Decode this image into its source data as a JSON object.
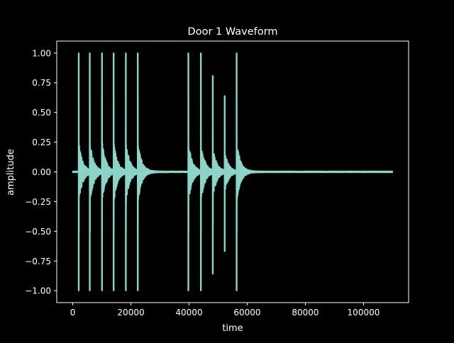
{
  "chart_data": {
    "type": "line",
    "title": "Door 1 Waveform",
    "xlabel": "time",
    "ylabel": "amplitude",
    "xlim": [
      -5500,
      115500
    ],
    "ylim": [
      -1.1,
      1.1
    ],
    "x_ticks": [
      0,
      20000,
      40000,
      60000,
      80000,
      100000
    ],
    "x_tick_labels": [
      "0",
      "20000",
      "40000",
      "60000",
      "80000",
      "100000"
    ],
    "y_ticks": [
      -1.0,
      -0.75,
      -0.5,
      -0.25,
      0.0,
      0.25,
      0.5,
      0.75,
      1.0
    ],
    "y_tick_labels": [
      "−1.00",
      "−0.75",
      "−0.50",
      "−0.25",
      "0.00",
      "0.25",
      "0.50",
      "0.75",
      "1.00"
    ],
    "grid": false,
    "series": [
      {
        "color": "#8dd3c7",
        "x_range": [
          0,
          110000
        ],
        "events": [
          {
            "x": 2000,
            "peak": 1.0,
            "trough": -1.0
          },
          {
            "x": 5800,
            "peak": 1.0,
            "trough": -1.0
          },
          {
            "x": 10000,
            "peak": 1.0,
            "trough": -1.0
          },
          {
            "x": 14000,
            "peak": 1.0,
            "trough": -1.0
          },
          {
            "x": 18200,
            "peak": 1.0,
            "trough": -1.0
          },
          {
            "x": 22300,
            "peak": 1.0,
            "trough": -1.0
          },
          {
            "x": 39700,
            "peak": 1.0,
            "trough": -1.0
          },
          {
            "x": 44000,
            "peak": 1.0,
            "trough": -1.0
          },
          {
            "x": 48100,
            "peak": 0.81,
            "trough": -0.86
          },
          {
            "x": 52200,
            "peak": 0.64,
            "trough": -0.67
          },
          {
            "x": 56300,
            "peak": 1.0,
            "trough": -1.0
          }
        ]
      }
    ]
  },
  "colors": {
    "background": "#000000",
    "axes": "#ffffff",
    "line": "#8dd3c7"
  }
}
